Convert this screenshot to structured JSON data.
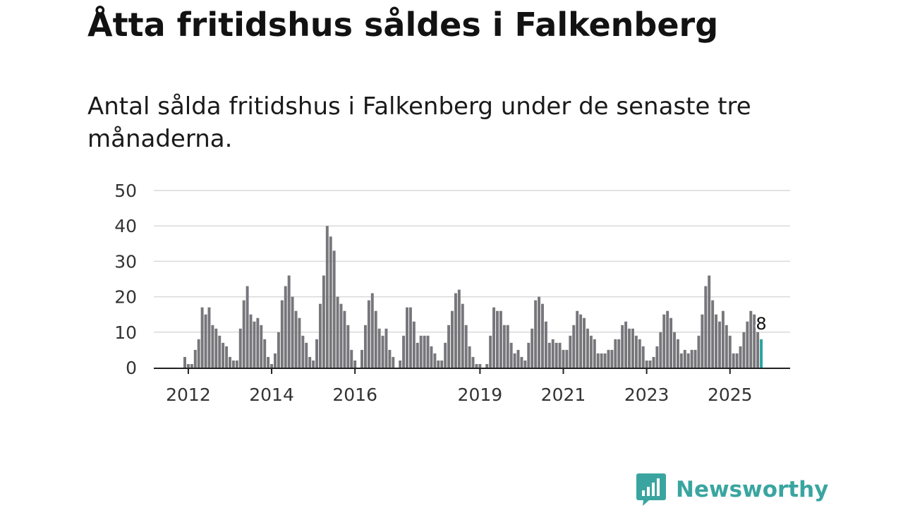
{
  "header": {
    "title": "Åtta fritidshus såldes i Falkenberg",
    "subtitle": "Antal sålda fritidshus i Falkenberg under de senaste tre månaderna."
  },
  "brand": {
    "name": "Newsworthy",
    "color": "#3aa5a0"
  },
  "chart_data": {
    "type": "bar",
    "title": "Åtta fritidshus såldes i Falkenberg",
    "subtitle": "Antal sålda fritidshus i Falkenberg under de senaste tre månaderna.",
    "xlabel": "",
    "ylabel": "",
    "ylim": [
      0,
      50
    ],
    "yticks": [
      0,
      10,
      20,
      30,
      40,
      50
    ],
    "grid": true,
    "x_start": "2011-12",
    "x_end": "2025-09",
    "xtick_labels": [
      {
        "label": "2012",
        "month": "2012-01"
      },
      {
        "label": "2014",
        "month": "2014-01"
      },
      {
        "label": "2016",
        "month": "2016-01"
      },
      {
        "label": "2019",
        "month": "2019-01"
      },
      {
        "label": "2021",
        "month": "2021-01"
      },
      {
        "label": "2023",
        "month": "2023-01"
      },
      {
        "label": "2025",
        "month": "2025-01"
      }
    ],
    "bar_color": "#76767b",
    "highlight_color": "#2aa3a3",
    "highlight_last": true,
    "last_value_label": "8",
    "values": [
      3,
      1,
      1,
      5,
      8,
      17,
      15,
      17,
      12,
      11,
      9,
      7,
      6,
      3,
      2,
      2,
      11,
      19,
      23,
      15,
      13,
      14,
      12,
      8,
      3,
      1,
      4,
      10,
      19,
      23,
      26,
      20,
      16,
      14,
      9,
      7,
      3,
      2,
      8,
      18,
      26,
      40,
      37,
      33,
      20,
      18,
      16,
      12,
      5,
      2,
      0,
      5,
      12,
      19,
      21,
      16,
      11,
      9,
      11,
      5,
      3,
      0,
      2,
      9,
      17,
      17,
      13,
      7,
      9,
      9,
      9,
      6,
      4,
      2,
      2,
      7,
      12,
      16,
      21,
      22,
      18,
      12,
      6,
      3,
      1,
      1,
      0,
      1,
      9,
      17,
      16,
      16,
      12,
      12,
      7,
      4,
      5,
      3,
      2,
      7,
      11,
      19,
      20,
      18,
      13,
      7,
      8,
      7,
      7,
      5,
      5,
      9,
      12,
      16,
      15,
      14,
      11,
      9,
      8,
      4,
      4,
      4,
      5,
      5,
      8,
      8,
      12,
      13,
      11,
      11,
      9,
      8,
      6,
      2,
      2,
      3,
      6,
      10,
      15,
      16,
      14,
      10,
      8,
      4,
      5,
      4,
      5,
      5,
      9,
      15,
      23,
      26,
      19,
      15,
      13,
      16,
      12,
      9,
      4,
      4,
      6,
      10,
      13,
      16,
      15,
      10,
      8
    ]
  }
}
